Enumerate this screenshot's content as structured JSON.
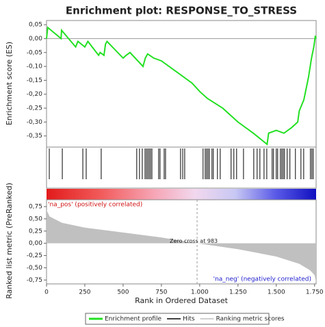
{
  "chart_data": {
    "type": "enrichment",
    "title": "Enrichment plot: RESPONSE_TO_STRESS",
    "xlabel": "Rank in Ordered Dataset",
    "ylabel": "Enrichment score (ES)",
    "y2label": "Ranked list metric (PreRanked)",
    "xlim": [
      0,
      1760
    ],
    "xticks": [
      0,
      250,
      500,
      750,
      {
        "value": 1000,
        "label": "1.000"
      },
      {
        "value": 1250,
        "label": "1.250"
      },
      {
        "value": 1500,
        "label": "1.500"
      },
      {
        "value": 1750,
        "label": "1.750"
      }
    ],
    "ylim": [
      -0.39,
      0.065
    ],
    "yticks": [
      {
        "value": 0.05,
        "label": "0,05"
      },
      {
        "value": 0,
        "label": "0,00"
      },
      {
        "value": -0.05,
        "label": "-0,05"
      },
      {
        "value": -0.1,
        "label": "-0,10"
      },
      {
        "value": -0.15,
        "label": "-0,15"
      },
      {
        "value": -0.2,
        "label": "-0,20"
      },
      {
        "value": -0.25,
        "label": "-0,25"
      },
      {
        "value": -0.3,
        "label": "-0,30"
      },
      {
        "value": -0.35,
        "label": "-0,35"
      }
    ],
    "y2lim": [
      -0.83,
      0.89
    ],
    "y2ticks": [
      {
        "value": 0.75,
        "label": "0,75"
      },
      {
        "value": 0.5,
        "label": "0,50"
      },
      {
        "value": 0.25,
        "label": "0,25"
      },
      {
        "value": 0,
        "label": "0,00"
      },
      {
        "value": -0.25,
        "label": "-0,25"
      },
      {
        "value": -0.5,
        "label": "-0,50"
      },
      {
        "value": -0.75,
        "label": "-0,75"
      }
    ],
    "series": [
      {
        "name": "Enrichment profile",
        "color": "#22e022",
        "x": [
          0,
          8,
          95,
          98,
          190,
          205,
          250,
          270,
          340,
          350,
          375,
          385,
          395,
          500,
          520,
          545,
          630,
          645,
          660,
          700,
          750,
          850,
          950,
          1000,
          1050,
          1150,
          1250,
          1350,
          1440,
          1450,
          1500,
          1550,
          1600,
          1640,
          1650,
          1680,
          1710,
          1730,
          1745,
          1755,
          1760
        ],
        "values": [
          0.0,
          0.04,
          0.0,
          0.03,
          -0.03,
          -0.01,
          -0.03,
          -0.01,
          -0.06,
          -0.05,
          -0.06,
          -0.02,
          -0.01,
          -0.07,
          -0.06,
          -0.05,
          -0.1,
          -0.07,
          -0.055,
          -0.07,
          -0.08,
          -0.12,
          -0.16,
          -0.19,
          -0.215,
          -0.25,
          -0.3,
          -0.34,
          -0.38,
          -0.34,
          -0.33,
          -0.34,
          -0.32,
          -0.3,
          -0.26,
          -0.22,
          -0.14,
          -0.07,
          -0.03,
          0.01,
          0.0
        ]
      },
      {
        "name": "Hits",
        "color": "#000000",
        "x": [
          18,
          103,
          237,
          259,
          357,
          589,
          607,
          625,
          643,
          652,
          661,
          670,
          679,
          688,
          732,
          741,
          768,
          777,
          875,
          889,
          902,
          1022,
          1036,
          1045,
          1054,
          1063,
          1080,
          1089,
          1116,
          1134,
          1205,
          1223,
          1241,
          1286,
          1353,
          1375,
          1393,
          1420,
          1438,
          1473,
          1482,
          1500,
          1509,
          1527,
          1536,
          1545,
          1554,
          1571,
          1589,
          1625,
          1661,
          1679,
          1723,
          1732,
          1741
        ]
      },
      {
        "name": "Ranking metric scores",
        "color": "#c0c0c0",
        "axis": "y2",
        "x": [
          0,
          20,
          100,
          250,
          500,
          750,
          983,
          1250,
          1500,
          1650,
          1720,
          1750,
          1760
        ],
        "values": [
          0.68,
          0.55,
          0.42,
          0.32,
          0.22,
          0.12,
          0,
          -0.12,
          -0.27,
          -0.42,
          -0.55,
          -0.65,
          -0.8
        ]
      }
    ],
    "pos_label": "'na_pos' (positively correlated)",
    "neg_label": "'na_neg' (negatively correlated)",
    "zero_cross": 983,
    "zero_cross_label": "Zero cross at 983"
  }
}
